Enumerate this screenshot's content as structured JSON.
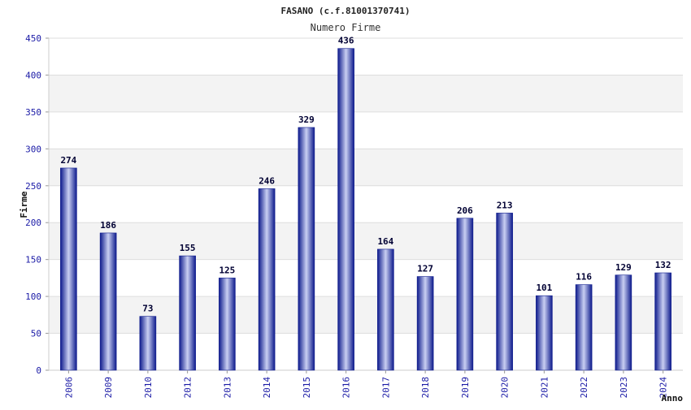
{
  "chart_data": {
    "type": "bar",
    "title": "FASANO (c.f.81001370741)",
    "subtitle": "Numero Firme",
    "xlabel": "Anno",
    "ylabel": "Firme",
    "categories": [
      "2006",
      "2009",
      "2010",
      "2012",
      "2013",
      "2014",
      "2015",
      "2016",
      "2017",
      "2018",
      "2019",
      "2020",
      "2021",
      "2022",
      "2023",
      "2024"
    ],
    "values": [
      274,
      186,
      73,
      155,
      125,
      246,
      329,
      436,
      164,
      127,
      206,
      213,
      101,
      116,
      129,
      132
    ],
    "ylim": [
      0,
      450
    ],
    "yticks": [
      0,
      50,
      100,
      150,
      200,
      250,
      300,
      350,
      400,
      450
    ],
    "grid": true,
    "legend": "none",
    "colors": {
      "bar_dark": "#0d1a8c",
      "bar_light": "#c9cff2",
      "band_alt": "#f3f3f3",
      "tick_text": "#1a1aa6"
    }
  }
}
